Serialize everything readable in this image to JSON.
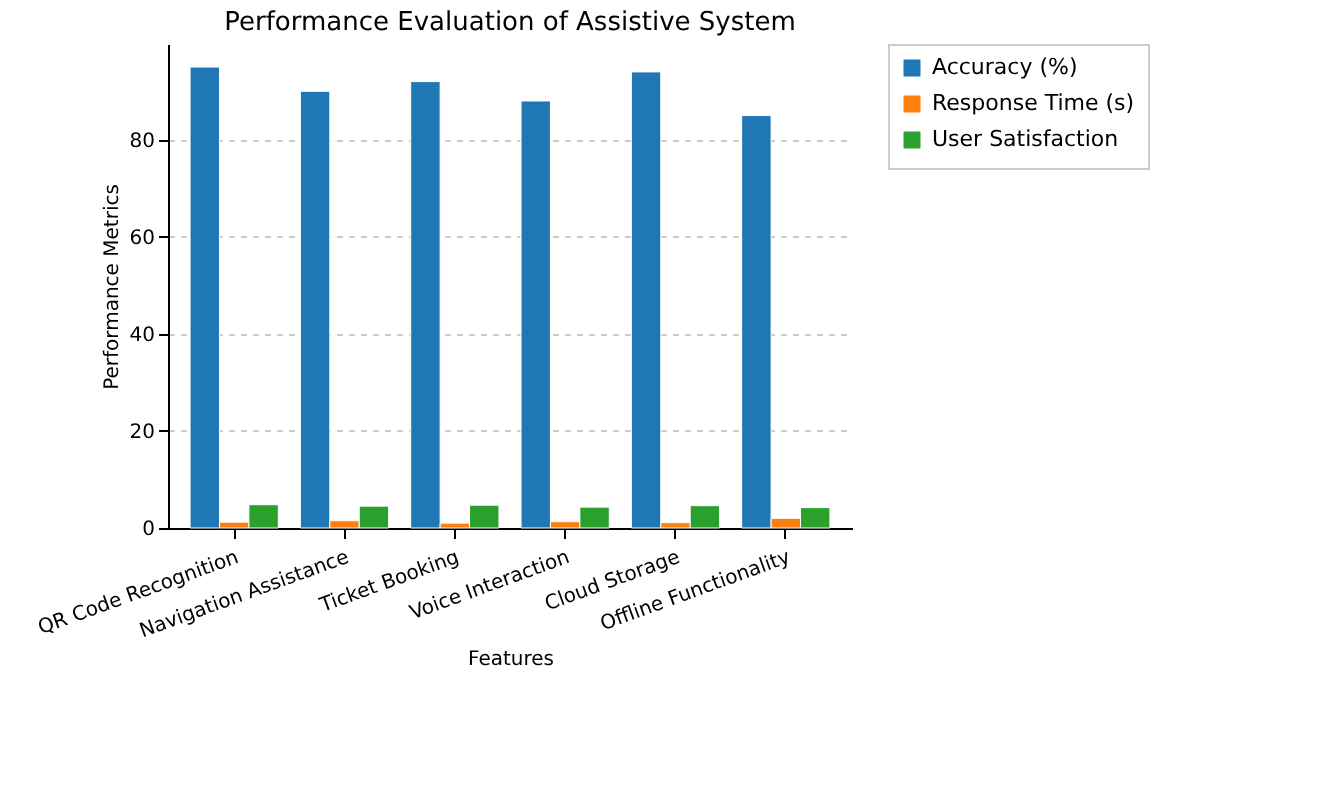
{
  "chart_data": {
    "type": "bar",
    "title": "Performance Evaluation of Assistive System",
    "xlabel": "Features",
    "ylabel": "Performance Metrics",
    "categories": [
      "QR Code Recognition",
      "Navigation Assistance",
      "Ticket Booking",
      "Voice Interaction",
      "Cloud Storage",
      "Offline Functionality"
    ],
    "series": [
      {
        "name": "Accuracy (%)",
        "color": "#1f77b4",
        "values": [
          95,
          90,
          92,
          88,
          94,
          85
        ]
      },
      {
        "name": "Response Time (s)",
        "color": "#ff7f0e",
        "values": [
          1.2,
          1.5,
          1.0,
          1.3,
          1.1,
          2.0
        ]
      },
      {
        "name": "User Satisfaction",
        "color": "#2ca02c",
        "values": [
          4.8,
          4.5,
          4.7,
          4.3,
          4.6,
          4.2
        ]
      }
    ],
    "ylim": [
      0,
      99.75
    ],
    "yticks": [
      0,
      20,
      40,
      60,
      80
    ],
    "grid": "y",
    "legend": "top right"
  }
}
